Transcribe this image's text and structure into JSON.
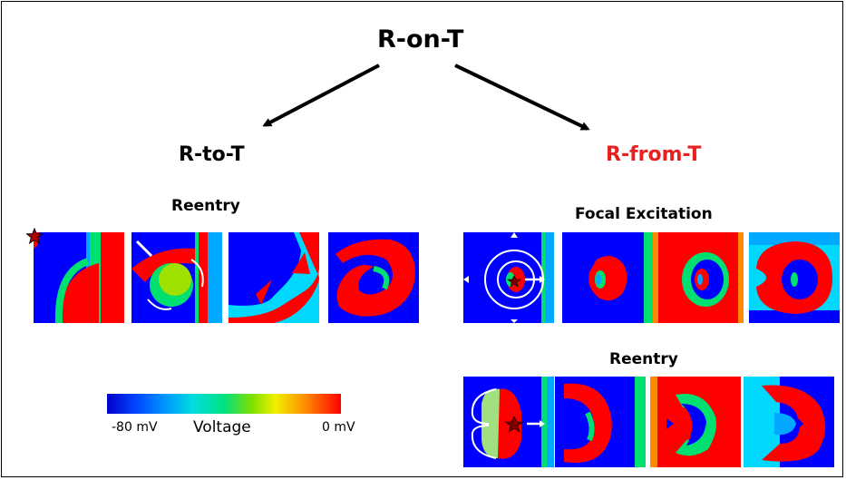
{
  "title": "R-on-T",
  "branches": {
    "left": {
      "label": "R-to-T",
      "panel_group": "Reentry"
    },
    "right": {
      "label": "R-from-T",
      "label_color": "#e8211f",
      "groups": [
        "Focal Excitation",
        "Reentry"
      ]
    }
  },
  "colorbar": {
    "min_label": "-80 mV",
    "label": "Voltage",
    "max_label": "0 mV"
  },
  "colors": {
    "blue": "#0000ff",
    "red": "#ff0000",
    "green": "#00e070",
    "cyan": "#00d8ff"
  }
}
